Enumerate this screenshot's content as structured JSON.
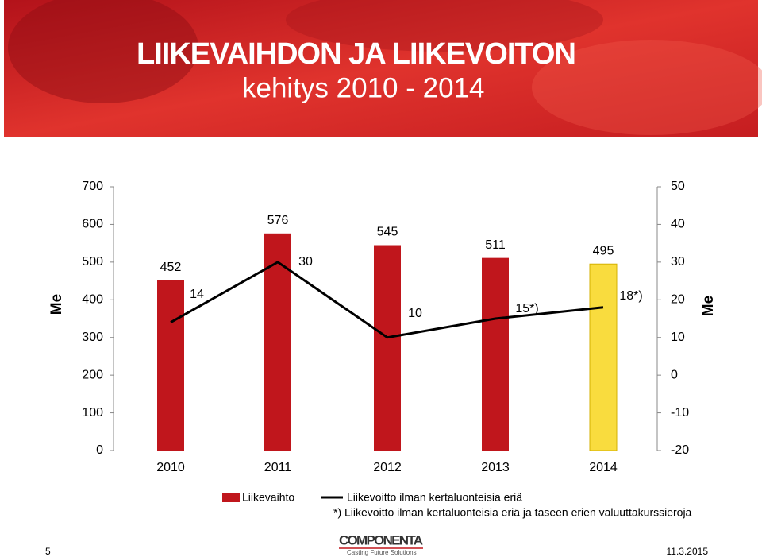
{
  "chart_data": {
    "type": "bar",
    "title": "LIIKEVAIHDON JA LIIKEVOITON",
    "subtitle": "kehitys 2010 - 2014",
    "categories": [
      "2010",
      "2011",
      "2012",
      "2013",
      "2014"
    ],
    "series": [
      {
        "name": "Liikevaihto",
        "type": "bar",
        "color": "#c0161c",
        "point_colors": [
          "#c0161c",
          "#c0161c",
          "#c0161c",
          "#c0161c",
          "#f9dc3e"
        ],
        "values": [
          452,
          576,
          545,
          511,
          495
        ]
      },
      {
        "name": "Liikevoitto ilman kertaluonteisia eriä",
        "type": "line",
        "axis": "y2",
        "color": "#000000",
        "values": [
          14,
          30,
          10,
          15,
          18
        ],
        "value_labels": [
          "14",
          "30",
          "10",
          "15*)",
          "18*)"
        ]
      }
    ],
    "ylabel": "Me",
    "y2label": "Me",
    "ylim": [
      0,
      700
    ],
    "yticks": [
      0,
      100,
      200,
      300,
      400,
      500,
      600,
      700
    ],
    "y2lim": [
      -20,
      50
    ],
    "y2ticks": [
      -20,
      -10,
      0,
      10,
      20,
      30,
      40,
      50
    ],
    "footnote": "*) Liikevoitto ilman kertaluonteisia eriä ja taseen erien valuuttakurssieroja"
  },
  "footer": {
    "page": "5",
    "logo": "COMPONENTA",
    "tagline": "Casting Future Solutions",
    "date": "11.3.2015"
  }
}
